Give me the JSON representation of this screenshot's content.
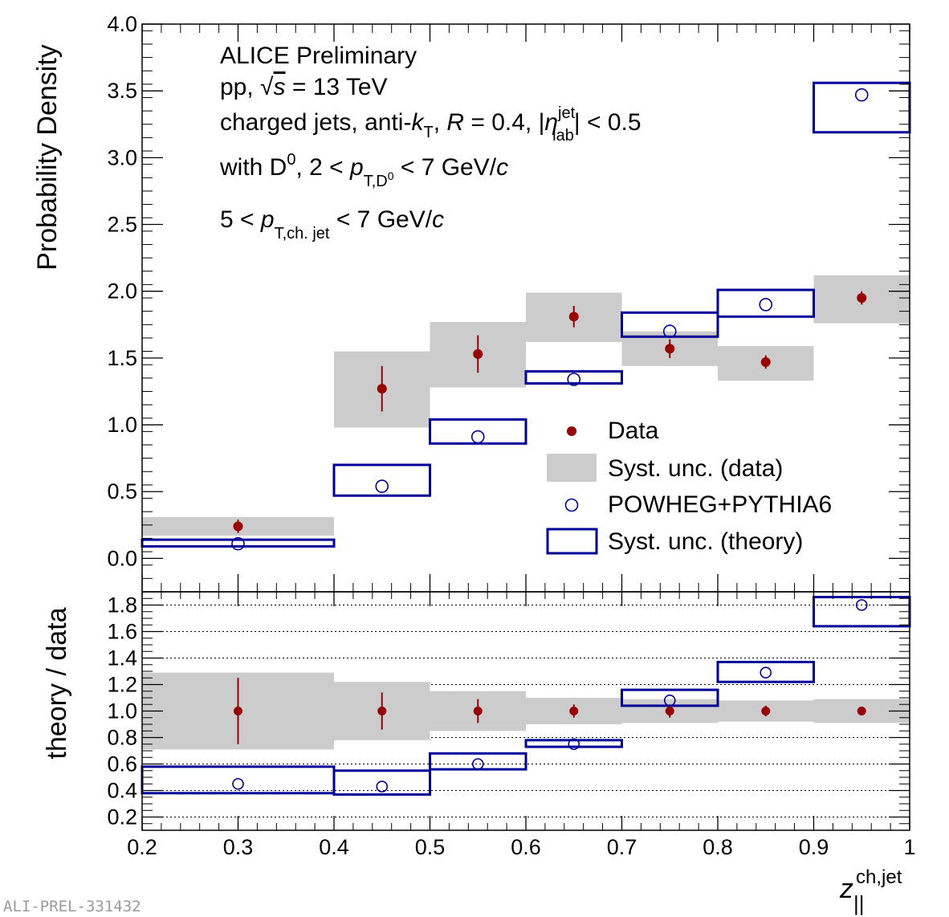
{
  "chart_data": [
    {
      "type": "scatter",
      "panel": "main",
      "ylabel": "Probability Density",
      "xlim": [
        0.2,
        1.0
      ],
      "ylim": [
        -0.25,
        4.0
      ],
      "y_ticks": [
        "0.0",
        "0.5",
        "1.0",
        "1.5",
        "2.0",
        "2.5",
        "3.0",
        "3.5",
        "4.0"
      ],
      "bins": [
        [
          0.2,
          0.4
        ],
        [
          0.4,
          0.5
        ],
        [
          0.5,
          0.6
        ],
        [
          0.6,
          0.7
        ],
        [
          0.7,
          0.8
        ],
        [
          0.8,
          0.9
        ],
        [
          0.9,
          1.0
        ]
      ],
      "series": [
        {
          "name": "Data",
          "x": [
            0.3,
            0.45,
            0.55,
            0.65,
            0.75,
            0.85,
            0.95
          ],
          "values": [
            0.24,
            1.27,
            1.53,
            1.81,
            1.57,
            1.47,
            1.95
          ],
          "stat_err": [
            0.05,
            0.17,
            0.14,
            0.08,
            0.07,
            0.05,
            0.05
          ],
          "syst_low": [
            0.17,
            0.98,
            1.28,
            1.62,
            1.44,
            1.33,
            1.76
          ],
          "syst_high": [
            0.31,
            1.55,
            1.77,
            1.99,
            1.7,
            1.59,
            2.12
          ]
        },
        {
          "name": "POWHEG+PYTHIA6",
          "x": [
            0.3,
            0.45,
            0.55,
            0.65,
            0.75,
            0.85,
            0.95
          ],
          "values": [
            0.11,
            0.54,
            0.91,
            1.34,
            1.7,
            1.9,
            3.47
          ],
          "syst_low": [
            0.09,
            0.47,
            0.86,
            1.31,
            1.66,
            1.81,
            3.19
          ],
          "syst_high": [
            0.14,
            0.7,
            1.04,
            1.4,
            1.84,
            2.01,
            3.56
          ]
        }
      ],
      "legend": [
        "Data",
        "Syst. unc. (data)",
        "POWHEG+PYTHIA6",
        "Syst. unc. (theory)"
      ],
      "legend_position": "lower-right",
      "annotations": [
        "ALICE Preliminary",
        "pp, √s = 13 TeV",
        "charged jets, anti-kT, R = 0.4, |η jet lab| < 0.5",
        "with D0, 2 < pT,D0 < 7 GeV/c",
        "5 < pT,ch. jet < 7 GeV/c"
      ]
    },
    {
      "type": "scatter",
      "panel": "ratio",
      "ylabel": "theory / data",
      "xlabel": "z‖ ch,jet",
      "xlim": [
        0.2,
        1.0
      ],
      "ylim": [
        0.1,
        1.9
      ],
      "x_ticks": [
        "0.2",
        "0.3",
        "0.4",
        "0.5",
        "0.6",
        "0.7",
        "0.8",
        "0.9",
        "1"
      ],
      "y_ticks": [
        "0.2",
        "0.4",
        "0.6",
        "0.8",
        "1.0",
        "1.2",
        "1.4",
        "1.6",
        "1.8"
      ],
      "grid": true,
      "bins": [
        [
          0.2,
          0.4
        ],
        [
          0.4,
          0.5
        ],
        [
          0.5,
          0.6
        ],
        [
          0.6,
          0.7
        ],
        [
          0.7,
          0.8
        ],
        [
          0.8,
          0.9
        ],
        [
          0.9,
          1.0
        ]
      ],
      "series": [
        {
          "name": "Data",
          "x": [
            0.3,
            0.45,
            0.55,
            0.65,
            0.75,
            0.85,
            0.95
          ],
          "values": [
            1.0,
            1.0,
            1.0,
            1.0,
            1.0,
            1.0,
            1.0
          ],
          "stat_err": [
            0.25,
            0.14,
            0.09,
            0.05,
            0.05,
            0.04,
            0.03
          ],
          "syst_low": [
            0.71,
            0.78,
            0.85,
            0.9,
            0.91,
            0.92,
            0.91
          ],
          "syst_high": [
            1.29,
            1.22,
            1.15,
            1.1,
            1.09,
            1.08,
            1.09
          ]
        },
        {
          "name": "POWHEG+PYTHIA6",
          "x": [
            0.3,
            0.45,
            0.55,
            0.65,
            0.75,
            0.85,
            0.95
          ],
          "values": [
            0.45,
            0.43,
            0.6,
            0.75,
            1.08,
            1.29,
            1.8
          ],
          "syst_low": [
            0.38,
            0.37,
            0.56,
            0.73,
            1.04,
            1.22,
            1.64
          ],
          "syst_high": [
            0.58,
            0.55,
            0.68,
            0.78,
            1.16,
            1.37,
            1.86
          ]
        }
      ]
    }
  ],
  "text": {
    "alice": "ALICE Preliminary",
    "pp_prefix": "pp, ",
    "sqrt_sym": "√",
    "sqrt_var": "s",
    "energy": " = 13 TeV",
    "jets_line_a": "charged jets, anti-",
    "k_var": "k",
    "sub_T": "T",
    "jets_line_b": ", ",
    "R_var": "R",
    "jets_line_c": " = 0.4, |",
    "eta": "η",
    "sup_jet": "jet",
    "sub_lab": "lab",
    "jets_line_d": "| < 0.5",
    "withD_a": "with D",
    "sup_0": "0",
    "withD_b": ", 2 < ",
    "p_var": "p",
    "sub_TD": "T,D",
    "sub_TD_sup": "0",
    "withD_c": " < 7 GeV/",
    "c_var": "c",
    "ptjet_a": "5 < ",
    "sub_Tjet": "T,ch. jet",
    "ptjet_b": " < 7 GeV/",
    "z_var": "z",
    "z_sub": "||",
    "z_sup": "ch,jet",
    "watermark": "ALI-PREL-331432"
  },
  "colors": {
    "data": "#990000",
    "theory": "#000099",
    "syst_band": "#cccccc"
  }
}
